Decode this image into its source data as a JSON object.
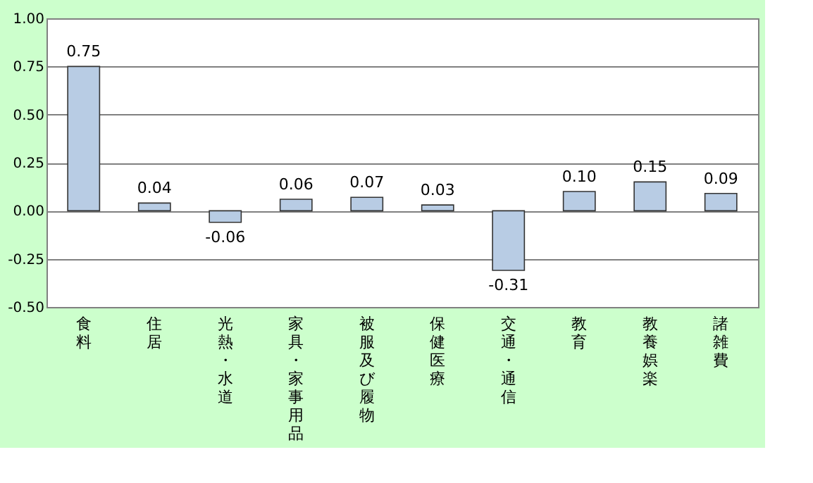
{
  "chart_data": {
    "type": "bar",
    "categories": [
      "食料",
      "住居",
      "光熱・水道",
      "家具・家事用品",
      "被服及び履物",
      "保健医療",
      "交通・通信",
      "教育",
      "教養娯楽",
      "諸雑費"
    ],
    "values": [
      0.75,
      0.04,
      -0.06,
      0.06,
      0.07,
      0.03,
      -0.31,
      0.1,
      0.15,
      0.09
    ],
    "value_labels": [
      "0.75",
      "0.04",
      "-0.06",
      "0.06",
      "0.07",
      "0.03",
      "-0.31",
      "0.10",
      "0.15",
      "0.09"
    ],
    "color": "#b8cce4",
    "ylim": [
      -0.5,
      1.0
    ],
    "yticks": [
      {
        "value": -0.5,
        "label": "-0.50"
      },
      {
        "value": -0.25,
        "label": "-0.25"
      },
      {
        "value": 0,
        "label": "0.00"
      },
      {
        "value": 0.25,
        "label": "0.25"
      },
      {
        "value": 0.5,
        "label": "0.50"
      },
      {
        "value": 0.75,
        "label": "0.75"
      },
      {
        "value": 1.0,
        "label": "1.00"
      }
    ],
    "grid": "y"
  }
}
